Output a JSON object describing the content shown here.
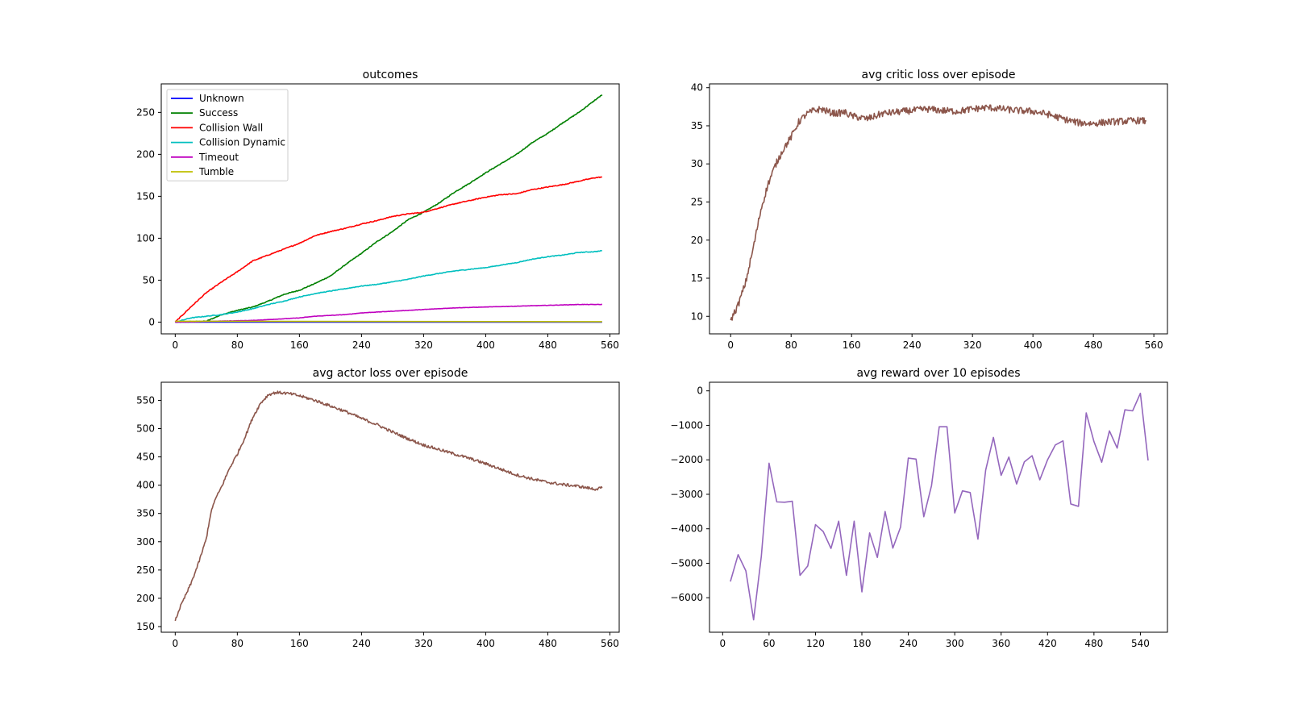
{
  "figure": {
    "background": "#ffffff"
  },
  "chart_data": [
    {
      "id": "outcomes",
      "type": "line",
      "title": "outcomes",
      "xlabel": "",
      "ylabel": "",
      "xlim": [
        -18,
        572
      ],
      "ylim": [
        -14,
        284
      ],
      "xticks": [
        0,
        80,
        160,
        240,
        320,
        400,
        480,
        560
      ],
      "yticks": [
        0,
        50,
        100,
        150,
        200,
        250
      ],
      "grid": false,
      "legend": "top-left",
      "series": [
        {
          "name": "Unknown",
          "color": "#0000ff",
          "noise": 0,
          "points": [
            [
              0,
              0
            ],
            [
              550,
              0
            ]
          ]
        },
        {
          "name": "Success",
          "color": "#008000",
          "noise": 0.5,
          "points": [
            [
              0,
              0
            ],
            [
              40,
              1
            ],
            [
              60,
              9
            ],
            [
              80,
              14
            ],
            [
              100,
              18
            ],
            [
              120,
              25
            ],
            [
              140,
              33
            ],
            [
              160,
              38
            ],
            [
              180,
              46
            ],
            [
              200,
              55
            ],
            [
              220,
              69
            ],
            [
              240,
              82
            ],
            [
              260,
              96
            ],
            [
              280,
              108
            ],
            [
              300,
              122
            ],
            [
              320,
              131
            ],
            [
              340,
              142
            ],
            [
              360,
              155
            ],
            [
              380,
              166
            ],
            [
              400,
              178
            ],
            [
              420,
              189
            ],
            [
              440,
              200
            ],
            [
              460,
              214
            ],
            [
              480,
              225
            ],
            [
              500,
              238
            ],
            [
              520,
              250
            ],
            [
              540,
              264
            ],
            [
              550,
              271
            ]
          ]
        },
        {
          "name": "Collision Wall",
          "color": "#ff0000",
          "noise": 0.5,
          "points": [
            [
              0,
              0
            ],
            [
              20,
              18
            ],
            [
              40,
              35
            ],
            [
              60,
              48
            ],
            [
              80,
              60
            ],
            [
              100,
              73
            ],
            [
              120,
              80
            ],
            [
              140,
              87
            ],
            [
              160,
              94
            ],
            [
              180,
              103
            ],
            [
              200,
              108
            ],
            [
              220,
              112
            ],
            [
              240,
              117
            ],
            [
              260,
              121
            ],
            [
              280,
              126
            ],
            [
              300,
              129
            ],
            [
              320,
              131
            ],
            [
              340,
              136
            ],
            [
              360,
              141
            ],
            [
              380,
              145
            ],
            [
              400,
              149
            ],
            [
              420,
              152
            ],
            [
              440,
              153
            ],
            [
              460,
              158
            ],
            [
              480,
              161
            ],
            [
              500,
              164
            ],
            [
              520,
              168
            ],
            [
              540,
              172
            ],
            [
              550,
              173
            ]
          ]
        },
        {
          "name": "Collision Dynamic",
          "color": "#00bfbf",
          "noise": 0.4,
          "points": [
            [
              0,
              0
            ],
            [
              20,
              5
            ],
            [
              40,
              7
            ],
            [
              60,
              9
            ],
            [
              80,
              12
            ],
            [
              100,
              16
            ],
            [
              120,
              21
            ],
            [
              140,
              25
            ],
            [
              160,
              30
            ],
            [
              180,
              34
            ],
            [
              200,
              37
            ],
            [
              220,
              40
            ],
            [
              240,
              43
            ],
            [
              260,
              45
            ],
            [
              280,
              48
            ],
            [
              300,
              51
            ],
            [
              320,
              55
            ],
            [
              340,
              58
            ],
            [
              360,
              61
            ],
            [
              380,
              63
            ],
            [
              400,
              65
            ],
            [
              420,
              68
            ],
            [
              440,
              71
            ],
            [
              460,
              75
            ],
            [
              480,
              78
            ],
            [
              500,
              80
            ],
            [
              520,
              83
            ],
            [
              540,
              84
            ],
            [
              550,
              85
            ]
          ]
        },
        {
          "name": "Timeout",
          "color": "#bf00bf",
          "noise": 0.2,
          "points": [
            [
              0,
              0
            ],
            [
              100,
              2
            ],
            [
              120,
              3
            ],
            [
              140,
              4
            ],
            [
              160,
              5
            ],
            [
              180,
              7
            ],
            [
              200,
              8
            ],
            [
              220,
              9
            ],
            [
              240,
              11
            ],
            [
              260,
              12
            ],
            [
              280,
              13
            ],
            [
              300,
              14
            ],
            [
              320,
              15
            ],
            [
              340,
              16
            ],
            [
              360,
              17
            ],
            [
              400,
              18
            ],
            [
              440,
              19
            ],
            [
              480,
              20
            ],
            [
              520,
              21
            ],
            [
              550,
              21
            ]
          ]
        },
        {
          "name": "Tumble",
          "color": "#bfbf00",
          "noise": 0,
          "points": [
            [
              0,
              1
            ],
            [
              550,
              0.5
            ]
          ]
        }
      ]
    },
    {
      "id": "critic",
      "type": "line",
      "title": "avg critic loss over episode",
      "xlabel": "",
      "ylabel": "",
      "xlim": [
        -28,
        578
      ],
      "ylim": [
        7.7,
        40.5
      ],
      "xticks": [
        0,
        80,
        160,
        240,
        320,
        400,
        480,
        560
      ],
      "yticks": [
        10,
        15,
        20,
        25,
        30,
        35,
        40
      ],
      "grid": false,
      "legend": "none",
      "series": [
        {
          "name": "",
          "color": "#8c564b",
          "noise": 0.45,
          "points": [
            [
              0,
              9.5
            ],
            [
              10,
              11.5
            ],
            [
              20,
              14.5
            ],
            [
              30,
              19
            ],
            [
              40,
              24
            ],
            [
              50,
              27.5
            ],
            [
              60,
              30
            ],
            [
              70,
              32
            ],
            [
              80,
              33.5
            ],
            [
              90,
              35.5
            ],
            [
              100,
              36.5
            ],
            [
              110,
              37
            ],
            [
              120,
              37.2
            ],
            [
              130,
              36.8
            ],
            [
              140,
              36.6
            ],
            [
              150,
              36.8
            ],
            [
              160,
              36.3
            ],
            [
              170,
              36.1
            ],
            [
              180,
              35.9
            ],
            [
              190,
              36.2
            ],
            [
              200,
              36.6
            ],
            [
              220,
              36.8
            ],
            [
              240,
              37
            ],
            [
              260,
              37.2
            ],
            [
              280,
              37
            ],
            [
              300,
              36.9
            ],
            [
              320,
              37.2
            ],
            [
              340,
              37.4
            ],
            [
              360,
              37.2
            ],
            [
              380,
              37
            ],
            [
              400,
              36.9
            ],
            [
              420,
              36.5
            ],
            [
              440,
              35.9
            ],
            [
              460,
              35.4
            ],
            [
              480,
              35.3
            ],
            [
              500,
              35.5
            ],
            [
              520,
              35.6
            ],
            [
              540,
              35.7
            ],
            [
              550,
              35.6
            ]
          ]
        }
      ]
    },
    {
      "id": "actor",
      "type": "line",
      "title": "avg actor loss over episode",
      "xlabel": "",
      "ylabel": "",
      "xlim": [
        -18,
        572
      ],
      "ylim": [
        140,
        582
      ],
      "xticks": [
        0,
        80,
        160,
        240,
        320,
        400,
        480,
        560
      ],
      "yticks": [
        150,
        200,
        250,
        300,
        350,
        400,
        450,
        500,
        550
      ],
      "grid": false,
      "legend": "none",
      "series": [
        {
          "name": "",
          "color": "#8c564b",
          "noise": 2.5,
          "points": [
            [
              0,
              160
            ],
            [
              5,
              180
            ],
            [
              10,
              195
            ],
            [
              20,
              225
            ],
            [
              30,
              262
            ],
            [
              40,
              305
            ],
            [
              45,
              345
            ],
            [
              50,
              370
            ],
            [
              60,
              398
            ],
            [
              70,
              430
            ],
            [
              80,
              455
            ],
            [
              90,
              485
            ],
            [
              100,
              520
            ],
            [
              110,
              545
            ],
            [
              120,
              560
            ],
            [
              130,
              564
            ],
            [
              140,
              563
            ],
            [
              150,
              561
            ],
            [
              160,
              558
            ],
            [
              180,
              550
            ],
            [
              200,
              540
            ],
            [
              220,
              530
            ],
            [
              240,
              518
            ],
            [
              260,
              507
            ],
            [
              280,
              494
            ],
            [
              300,
              482
            ],
            [
              320,
              471
            ],
            [
              340,
              463
            ],
            [
              360,
              455
            ],
            [
              380,
              447
            ],
            [
              400,
              438
            ],
            [
              420,
              428
            ],
            [
              440,
              418
            ],
            [
              460,
              411
            ],
            [
              480,
              405
            ],
            [
              500,
              401
            ],
            [
              520,
              398
            ],
            [
              540,
              393
            ],
            [
              550,
              395
            ]
          ]
        }
      ]
    },
    {
      "id": "reward",
      "type": "line",
      "title": "avg reward over 10 episodes",
      "xlabel": "",
      "ylabel": "",
      "xlim": [
        -17,
        575
      ],
      "ylim": [
        -7000,
        250
      ],
      "xticks": [
        0,
        60,
        120,
        180,
        240,
        300,
        360,
        420,
        480,
        540
      ],
      "yticks": [
        0,
        -1000,
        -2000,
        -3000,
        -4000,
        -5000,
        -6000
      ],
      "grid": false,
      "legend": "none",
      "series": [
        {
          "name": "",
          "color": "#9467bd",
          "noise": 0,
          "points": [
            [
              10,
              -5530
            ],
            [
              20,
              -4750
            ],
            [
              30,
              -5220
            ],
            [
              40,
              -6640
            ],
            [
              50,
              -4800
            ],
            [
              60,
              -2100
            ],
            [
              70,
              -3220
            ],
            [
              80,
              -3230
            ],
            [
              90,
              -3200
            ],
            [
              100,
              -5350
            ],
            [
              110,
              -5080
            ],
            [
              120,
              -3880
            ],
            [
              130,
              -4080
            ],
            [
              140,
              -4570
            ],
            [
              150,
              -3780
            ],
            [
              160,
              -5350
            ],
            [
              170,
              -3780
            ],
            [
              180,
              -5830
            ],
            [
              190,
              -4120
            ],
            [
              200,
              -4830
            ],
            [
              210,
              -3500
            ],
            [
              220,
              -4560
            ],
            [
              230,
              -3950
            ],
            [
              240,
              -1950
            ],
            [
              250,
              -1980
            ],
            [
              260,
              -3650
            ],
            [
              270,
              -2750
            ],
            [
              280,
              -1040
            ],
            [
              290,
              -1040
            ],
            [
              300,
              -3540
            ],
            [
              310,
              -2900
            ],
            [
              320,
              -2950
            ],
            [
              330,
              -4300
            ],
            [
              340,
              -2300
            ],
            [
              350,
              -1350
            ],
            [
              360,
              -2450
            ],
            [
              370,
              -1920
            ],
            [
              380,
              -2700
            ],
            [
              390,
              -2060
            ],
            [
              400,
              -1880
            ],
            [
              410,
              -2580
            ],
            [
              420,
              -2000
            ],
            [
              430,
              -1570
            ],
            [
              440,
              -1450
            ],
            [
              450,
              -3280
            ],
            [
              460,
              -3350
            ],
            [
              470,
              -640
            ],
            [
              480,
              -1470
            ],
            [
              490,
              -2070
            ],
            [
              500,
              -1160
            ],
            [
              510,
              -1660
            ],
            [
              520,
              -550
            ],
            [
              530,
              -580
            ],
            [
              540,
              -70
            ],
            [
              550,
              -2020
            ]
          ]
        }
      ]
    }
  ]
}
